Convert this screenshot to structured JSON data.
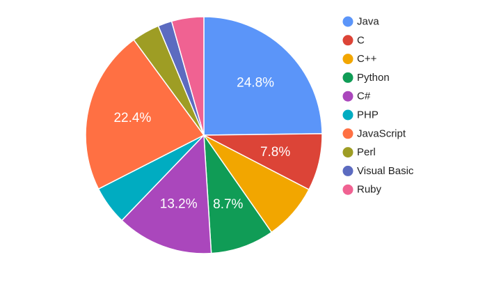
{
  "chart_data": {
    "type": "pie",
    "categories": [
      "Java",
      "C",
      "C++",
      "Python",
      "C#",
      "PHP",
      "JavaScript",
      "Perl",
      "Visual Basic",
      "Ruby"
    ],
    "values": [
      24.8,
      7.8,
      7.7,
      8.7,
      13.2,
      5.3,
      22.4,
      3.8,
      1.9,
      4.4
    ],
    "colors": [
      "#5b95f9",
      "#dc4437",
      "#f2a600",
      "#109c56",
      "#aa47bc",
      "#00acc1",
      "#ff7043",
      "#9e9d24",
      "#5c6bc0",
      "#f06292"
    ],
    "data_labels": [
      "24.8%",
      "7.8%",
      "",
      "8.7%",
      "13.2%",
      "",
      "22.4%",
      "",
      "",
      ""
    ],
    "legend_position": "right",
    "title": ""
  }
}
